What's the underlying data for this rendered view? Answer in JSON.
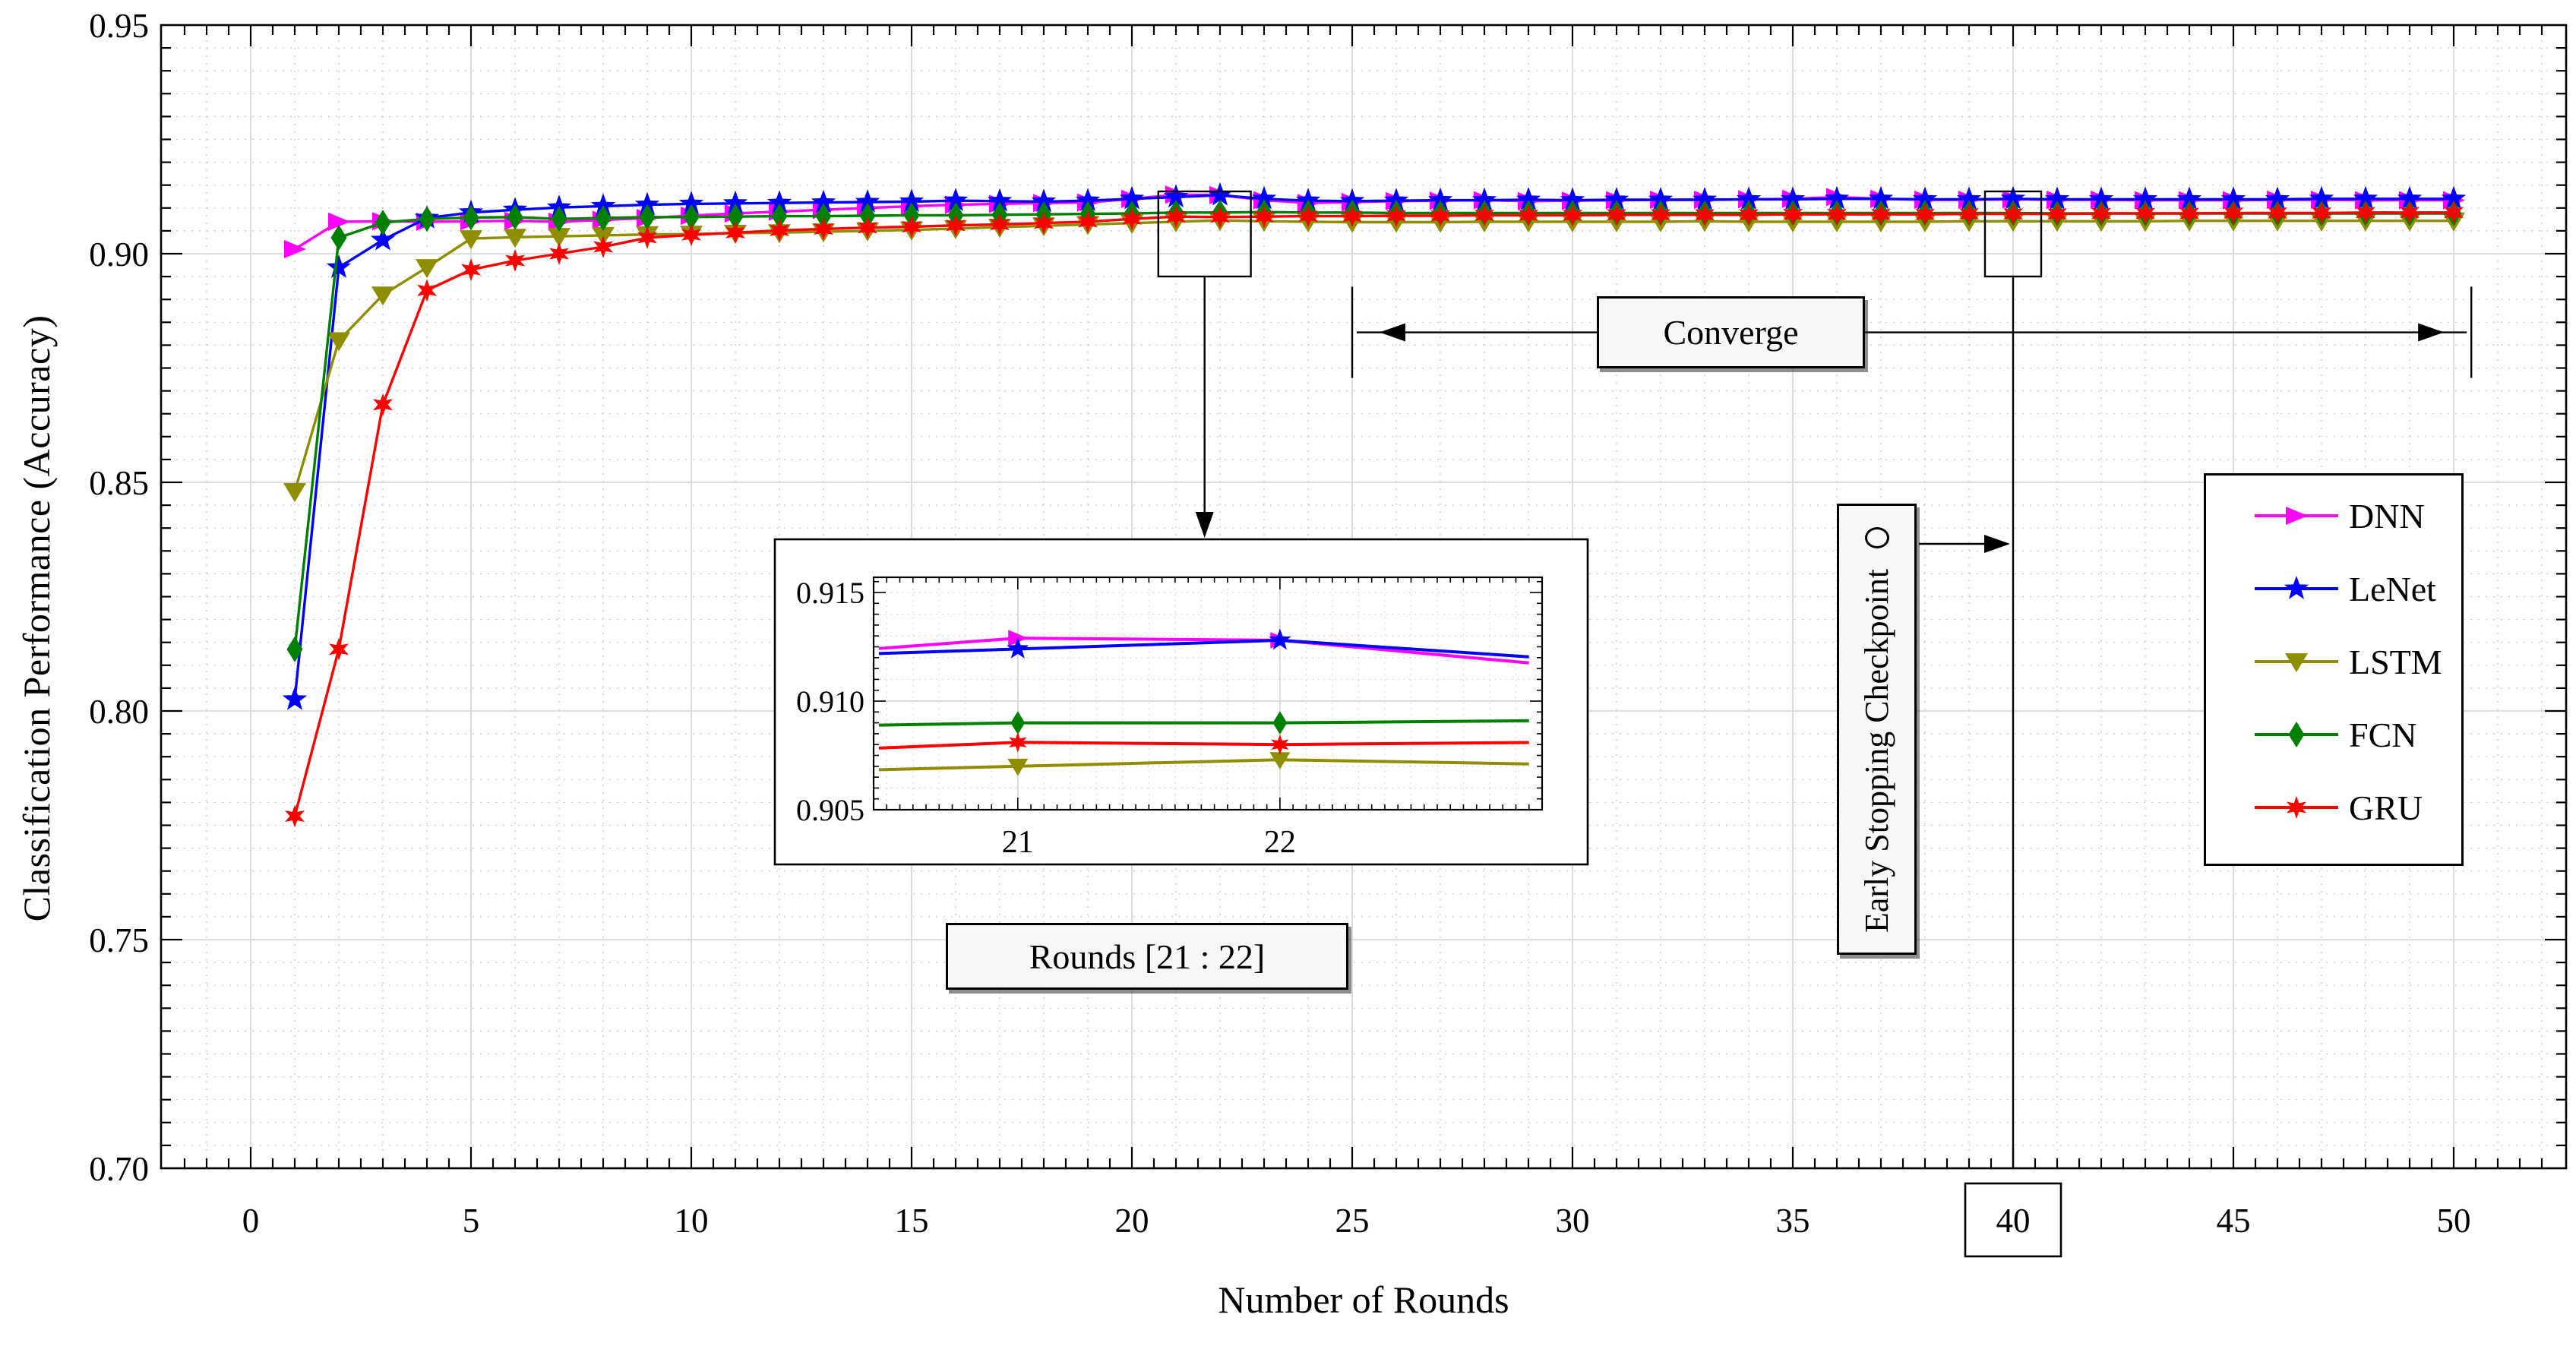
{
  "figure": {
    "xlabel": "Number of Rounds",
    "ylabel": "Classification Performance (Accuracy)"
  },
  "chart_data": {
    "type": "line",
    "title": "",
    "xlabel": "Number of Rounds",
    "ylabel": "Classification Performance (Accuracy)",
    "xlim": [
      -2.03,
      52.55
    ],
    "ylim": [
      0.7,
      0.95
    ],
    "xticks": [
      0,
      5,
      10,
      15,
      20,
      25,
      30,
      35,
      40,
      45,
      50
    ],
    "xtick_labels": [
      "0",
      "5",
      "10",
      "15",
      "20",
      "25",
      "30",
      "35",
      "40",
      "45",
      "50"
    ],
    "yticks": [
      0.7,
      0.75,
      0.8,
      0.85,
      0.9,
      0.95
    ],
    "ytick_labels": [
      "0.70",
      "0.75",
      "0.80",
      "0.85",
      "0.90",
      "0.95"
    ],
    "grid": "major solid gray + minor dotted (x every 1 round, y every 0.005)",
    "legend_position": "right-middle",
    "x": [
      1,
      2,
      3,
      4,
      5,
      6,
      7,
      8,
      9,
      10,
      11,
      12,
      13,
      14,
      15,
      16,
      17,
      18,
      19,
      20,
      21,
      22,
      23,
      24,
      25,
      26,
      27,
      28,
      29,
      30,
      31,
      32,
      33,
      34,
      35,
      36,
      37,
      38,
      39,
      40,
      41,
      42,
      43,
      44,
      45,
      46,
      47,
      48,
      49,
      50
    ],
    "series": [
      {
        "name": "DNN",
        "color": "#ff00ff",
        "marker": "triangle-right",
        "values": [
          0.901,
          0.907,
          0.9071,
          0.907,
          0.9071,
          0.9072,
          0.907,
          0.9074,
          0.9078,
          0.9083,
          0.9088,
          0.9092,
          0.9096,
          0.91,
          0.9104,
          0.9107,
          0.9109,
          0.9111,
          0.9112,
          0.912,
          0.9129,
          0.9128,
          0.9117,
          0.9111,
          0.9113,
          0.9115,
          0.9116,
          0.9117,
          0.9115,
          0.9116,
          0.9117,
          0.9118,
          0.9118,
          0.9119,
          0.912,
          0.9124,
          0.912,
          0.9118,
          0.9118,
          0.9119,
          0.9118,
          0.9118,
          0.9117,
          0.9117,
          0.9117,
          0.9118,
          0.9118,
          0.9117,
          0.9117,
          0.9117
        ]
      },
      {
        "name": "LeNet",
        "color": "#0000ff",
        "marker": "star5",
        "values": [
          0.8025,
          0.897,
          0.903,
          0.9078,
          0.909,
          0.9096,
          0.9101,
          0.9104,
          0.9107,
          0.9109,
          0.911,
          0.9111,
          0.9112,
          0.9113,
          0.9114,
          0.9116,
          0.9115,
          0.9114,
          0.9116,
          0.912,
          0.9124,
          0.9128,
          0.912,
          0.9116,
          0.9115,
          0.9116,
          0.9117,
          0.9117,
          0.9118,
          0.9117,
          0.9118,
          0.9118,
          0.9118,
          0.9119,
          0.9119,
          0.912,
          0.912,
          0.9119,
          0.9119,
          0.912,
          0.9119,
          0.9119,
          0.9119,
          0.9119,
          0.9119,
          0.9119,
          0.912,
          0.912,
          0.912,
          0.912
        ]
      },
      {
        "name": "LSTM",
        "color": "#8e8e00",
        "marker": "triangle-down",
        "values": [
          0.848,
          0.881,
          0.891,
          0.897,
          0.9033,
          0.9036,
          0.9038,
          0.904,
          0.9042,
          0.9043,
          0.9045,
          0.9046,
          0.9048,
          0.905,
          0.9052,
          0.9055,
          0.9058,
          0.9061,
          0.9064,
          0.9067,
          0.907,
          0.9073,
          0.9071,
          0.907,
          0.9069,
          0.9069,
          0.9069,
          0.907,
          0.907,
          0.907,
          0.907,
          0.907,
          0.9071,
          0.907,
          0.907,
          0.907,
          0.907,
          0.907,
          0.9071,
          0.9071,
          0.9071,
          0.9071,
          0.9071,
          0.9072,
          0.9072,
          0.9072,
          0.9072,
          0.9072,
          0.9072,
          0.9072
        ]
      },
      {
        "name": "FCN",
        "color": "#008000",
        "marker": "diamond",
        "values": [
          0.8135,
          0.9035,
          0.9068,
          0.9076,
          0.9079,
          0.908,
          0.9076,
          0.9078,
          0.908,
          0.908,
          0.9081,
          0.9082,
          0.9082,
          0.9083,
          0.9084,
          0.9084,
          0.9085,
          0.9086,
          0.9087,
          0.9088,
          0.909,
          0.909,
          0.9091,
          0.909,
          0.909,
          0.9089,
          0.9089,
          0.9089,
          0.9089,
          0.9089,
          0.9089,
          0.9089,
          0.9089,
          0.9089,
          0.9089,
          0.9089,
          0.9089,
          0.9089,
          0.9089,
          0.9089,
          0.9088,
          0.9088,
          0.9088,
          0.9088,
          0.9088,
          0.9088,
          0.9088,
          0.9088,
          0.9088,
          0.9088
        ]
      },
      {
        "name": "GRU",
        "color": "#ff0000",
        "marker": "star6",
        "values": [
          0.777,
          0.8135,
          0.867,
          0.892,
          0.8965,
          0.8985,
          0.9,
          0.9015,
          0.9035,
          0.9041,
          0.9046,
          0.9051,
          0.9054,
          0.9057,
          0.9059,
          0.9062,
          0.9064,
          0.9067,
          0.907,
          0.9076,
          0.9081,
          0.908,
          0.9081,
          0.9082,
          0.9082,
          0.9083,
          0.9083,
          0.9084,
          0.9084,
          0.9084,
          0.9085,
          0.9085,
          0.9085,
          0.9085,
          0.9086,
          0.9086,
          0.9086,
          0.9086,
          0.9087,
          0.9087,
          0.9087,
          0.9088,
          0.9088,
          0.9088,
          0.9089,
          0.9089,
          0.9089,
          0.909,
          0.909,
          0.909
        ]
      }
    ],
    "inset": {
      "label": "Rounds [21 : 22]",
      "xlim": [
        20.45,
        23.0
      ],
      "ylim": [
        0.905,
        0.9157
      ],
      "xticks": [
        21,
        22
      ],
      "xtick_labels": [
        "21",
        "22"
      ],
      "yticks": [
        0.915,
        0.91,
        0.905
      ],
      "ytick_labels": [
        "0.915",
        "0.910",
        "0.905"
      ],
      "marker_rounds": [
        21,
        22
      ]
    },
    "annotations": {
      "converge": {
        "label": "Converge",
        "x_from": 25.0,
        "x_to": 50.4,
        "y": 0.8828
      },
      "early_stopping": {
        "label": "Early Stopping Checkpoint",
        "round": 40
      },
      "boxed_xtick": "40",
      "zoom_region_rounds": [
        21,
        22
      ]
    }
  },
  "legend": {
    "items": [
      {
        "label": "DNN",
        "color": "#ff00ff",
        "marker": "triangle-right"
      },
      {
        "label": "LeNet",
        "color": "#0000ff",
        "marker": "star5"
      },
      {
        "label": "LSTM",
        "color": "#8e8e00",
        "marker": "triangle-down"
      },
      {
        "label": "FCN",
        "color": "#008000",
        "marker": "diamond"
      },
      {
        "label": "GRU",
        "color": "#ff0000",
        "marker": "star6"
      }
    ]
  }
}
